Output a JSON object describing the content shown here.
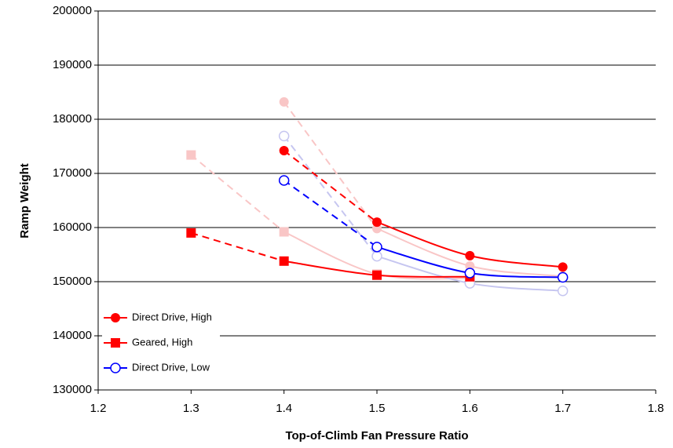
{
  "chart_data": {
    "type": "line",
    "xlabel": "Top-of-Climb Fan Pressure Ratio",
    "ylabel": "Ramp Weight",
    "xlim": [
      1.2,
      1.8
    ],
    "xticks": [
      1.2,
      1.3,
      1.4,
      1.5,
      1.6,
      1.7,
      1.8
    ],
    "ylim": [
      130000,
      200000
    ],
    "yticks": [
      130000,
      140000,
      150000,
      160000,
      170000,
      180000,
      190000,
      200000
    ],
    "grid": true,
    "legend": "lower left",
    "first_segment_dashed": true,
    "smooth": true,
    "series": [
      {
        "color": "#f9c6c6",
        "marker": "circle",
        "x": [
          1.4,
          1.5,
          1.6,
          1.7
        ],
        "values": [
          183200,
          159800,
          152900,
          151000
        ]
      },
      {
        "color": "#f9c6c6",
        "marker": "square",
        "x": [
          1.3,
          1.4,
          1.5,
          1.6
        ],
        "values": [
          173400,
          159200,
          151400,
          150600
        ]
      },
      {
        "color": "#c6c6f0",
        "marker": "open-circle",
        "x": [
          1.4,
          1.5,
          1.6,
          1.7
        ],
        "values": [
          176900,
          154700,
          149700,
          148300
        ]
      },
      {
        "name": "Direct Drive, High",
        "color": "#ff0000",
        "marker": "circle",
        "x": [
          1.4,
          1.5,
          1.6,
          1.7
        ],
        "values": [
          174200,
          161000,
          154800,
          152700
        ]
      },
      {
        "name": "Geared, High",
        "color": "#ff0000",
        "marker": "square",
        "x": [
          1.3,
          1.4,
          1.5,
          1.6
        ],
        "values": [
          159000,
          153800,
          151200,
          150900
        ]
      },
      {
        "name": "Direct Drive, Low",
        "color": "#0000ff",
        "marker": "open-circle",
        "x": [
          1.4,
          1.5,
          1.6,
          1.7
        ],
        "values": [
          168700,
          156400,
          151600,
          150800
        ]
      }
    ]
  }
}
